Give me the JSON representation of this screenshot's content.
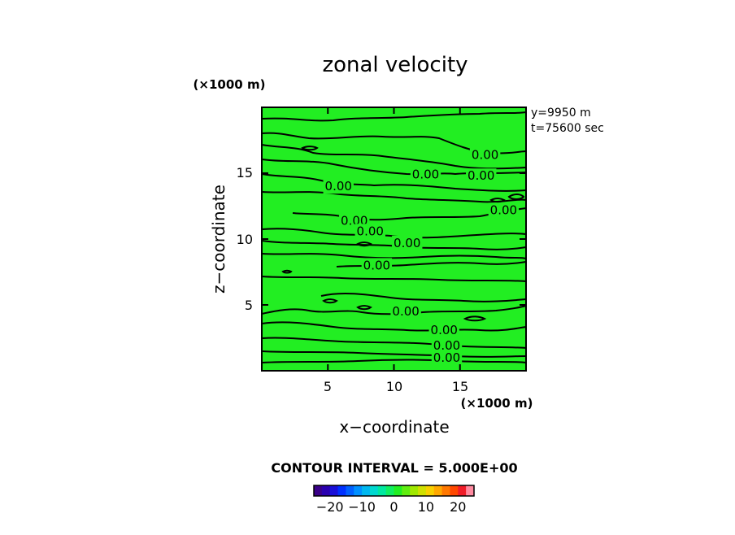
{
  "chart_data": {
    "type": "contour",
    "title": "zonal velocity",
    "xlabel": "x−coordinate",
    "ylabel": "z−coordinate",
    "x_scale": "(×1000 m)",
    "y_scale": "(×1000 m)",
    "xlim": [
      0,
      20
    ],
    "ylim": [
      0,
      20
    ],
    "x_ticks": [
      5,
      10,
      15
    ],
    "y_ticks": [
      5,
      10,
      15
    ],
    "info_lines": [
      "y=9950  m",
      "t=75600 sec"
    ],
    "field_value": 0,
    "field_color": "#22ee22",
    "contour_interval_text": "CONTOUR INTERVAL = 5.000E+00",
    "contour_labels": [
      {
        "text": "0.00",
        "x": 16.9,
        "z": 16.4
      },
      {
        "text": "0.00",
        "x": 12.4,
        "z": 14.9
      },
      {
        "text": "0.00",
        "x": 16.6,
        "z": 14.8
      },
      {
        "text": "0.00",
        "x": 5.8,
        "z": 14.0
      },
      {
        "text": "0.00",
        "x": 18.3,
        "z": 12.2
      },
      {
        "text": "0.00",
        "x": 7.0,
        "z": 11.4
      },
      {
        "text": "0.00",
        "x": 8.2,
        "z": 10.6
      },
      {
        "text": "0.00",
        "x": 11.0,
        "z": 9.7
      },
      {
        "text": "0.00",
        "x": 8.7,
        "z": 8.0
      },
      {
        "text": "0.00",
        "x": 10.9,
        "z": 4.5
      },
      {
        "text": "0.00",
        "x": 13.8,
        "z": 3.1
      },
      {
        "text": "0.00",
        "x": 14.0,
        "z": 1.9
      },
      {
        "text": "0.00",
        "x": 14.0,
        "z": 1.0
      }
    ],
    "colorbar": {
      "range": [
        -25,
        25
      ],
      "ticks": [
        -20,
        -10,
        0,
        10,
        20
      ],
      "tick_labels": [
        "−20",
        "−10",
        "0",
        "10",
        "20"
      ],
      "colors": [
        "#3a0088",
        "#2a00b0",
        "#1a10d8",
        "#0030ff",
        "#0060ff",
        "#0090ff",
        "#00b8f0",
        "#00d8d0",
        "#00e8a0",
        "#10ee60",
        "#22ee22",
        "#60ee10",
        "#a0e800",
        "#d0e000",
        "#f8d000",
        "#ffa800",
        "#ff7800",
        "#ff4800",
        "#f01c28",
        "#ff8aa0"
      ]
    }
  }
}
